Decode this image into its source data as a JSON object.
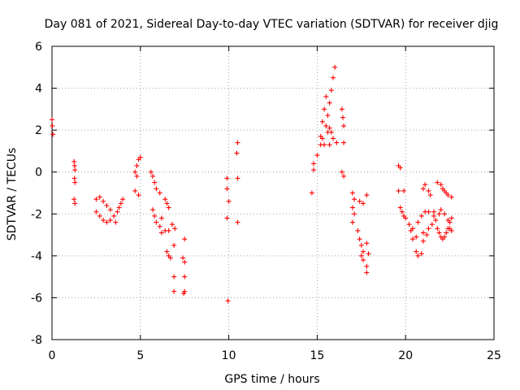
{
  "chart_data": {
    "type": "scatter",
    "title": "Day 081 of 2021, Sidereal Day-to-day VTEC variation (SDTVAR) for receiver djig",
    "xlabel": "GPS time / hours",
    "ylabel": "SDTVAR / TECUs",
    "xlim": [
      0,
      25
    ],
    "ylim": [
      -8,
      6
    ],
    "xticks": [
      0,
      5,
      10,
      15,
      20,
      25
    ],
    "xtick_labels": [
      "0",
      "5",
      "10",
      "15",
      "20",
      "25"
    ],
    "yticks": [
      -8,
      -6,
      -4,
      -2,
      0,
      2,
      4,
      6
    ],
    "ytick_labels": [
      "-8",
      "-6",
      "-4",
      "-2",
      "0",
      "2",
      "4",
      "6"
    ],
    "grid": true,
    "marker": "+",
    "color": "#ff0000",
    "series": [
      {
        "name": "SDTVAR",
        "points": [
          [
            0.0,
            2.5
          ],
          [
            0.02,
            2.2
          ],
          [
            0.05,
            1.8
          ],
          [
            1.25,
            0.5
          ],
          [
            1.28,
            0.3
          ],
          [
            1.3,
            0.1
          ],
          [
            1.27,
            -0.3
          ],
          [
            1.3,
            -0.5
          ],
          [
            1.25,
            -1.3
          ],
          [
            1.3,
            -1.5
          ],
          [
            2.5,
            -1.3
          ],
          [
            2.7,
            -1.2
          ],
          [
            2.9,
            -1.4
          ],
          [
            3.1,
            -1.6
          ],
          [
            3.3,
            -1.8
          ],
          [
            2.5,
            -1.9
          ],
          [
            2.7,
            -2.1
          ],
          [
            2.9,
            -2.3
          ],
          [
            3.1,
            -2.4
          ],
          [
            3.3,
            -2.3
          ],
          [
            3.5,
            -2.1
          ],
          [
            3.6,
            -2.4
          ],
          [
            3.7,
            -1.9
          ],
          [
            3.8,
            -1.7
          ],
          [
            3.9,
            -1.5
          ],
          [
            4.0,
            -1.3
          ],
          [
            4.7,
            0.0
          ],
          [
            4.8,
            0.3
          ],
          [
            4.9,
            0.6
          ],
          [
            5.0,
            0.7
          ],
          [
            4.8,
            -0.2
          ],
          [
            4.7,
            -0.9
          ],
          [
            4.9,
            -1.1
          ],
          [
            5.6,
            0.0
          ],
          [
            5.7,
            -0.2
          ],
          [
            5.8,
            -0.5
          ],
          [
            5.9,
            -0.8
          ],
          [
            6.1,
            -1.0
          ],
          [
            5.7,
            -1.8
          ],
          [
            5.8,
            -2.1
          ],
          [
            5.9,
            -2.4
          ],
          [
            6.1,
            -2.6
          ],
          [
            6.2,
            -2.9
          ],
          [
            6.4,
            -2.8
          ],
          [
            6.6,
            -2.8
          ],
          [
            6.4,
            -1.3
          ],
          [
            6.5,
            -1.5
          ],
          [
            6.6,
            -1.7
          ],
          [
            6.2,
            -2.2
          ],
          [
            6.5,
            -3.8
          ],
          [
            6.6,
            -4.0
          ],
          [
            6.7,
            -4.1
          ],
          [
            6.8,
            -2.5
          ],
          [
            6.9,
            -3.5
          ],
          [
            6.9,
            -5.0
          ],
          [
            6.9,
            -5.7
          ],
          [
            6.95,
            -2.7
          ],
          [
            7.5,
            -3.2
          ],
          [
            7.4,
            -4.1
          ],
          [
            7.5,
            -4.3
          ],
          [
            7.5,
            -5.0
          ],
          [
            7.5,
            -5.7
          ],
          [
            7.45,
            -5.8
          ],
          [
            9.9,
            -0.3
          ],
          [
            9.9,
            -0.8
          ],
          [
            10.0,
            -1.4
          ],
          [
            9.9,
            -2.2
          ],
          [
            9.95,
            -6.15
          ],
          [
            10.5,
            1.4
          ],
          [
            10.45,
            0.9
          ],
          [
            10.5,
            -0.3
          ],
          [
            10.5,
            -2.4
          ],
          [
            14.7,
            -1.0
          ],
          [
            14.8,
            0.1
          ],
          [
            14.8,
            0.4
          ],
          [
            15.0,
            0.8
          ],
          [
            15.2,
            1.3
          ],
          [
            15.3,
            1.6
          ],
          [
            15.5,
            2.2
          ],
          [
            15.6,
            2.7
          ],
          [
            15.7,
            3.3
          ],
          [
            15.8,
            3.9
          ],
          [
            15.9,
            4.5
          ],
          [
            16.0,
            5.0
          ],
          [
            15.3,
            2.4
          ],
          [
            15.4,
            3.0
          ],
          [
            15.5,
            3.6
          ],
          [
            15.6,
            1.9
          ],
          [
            15.7,
            2.1
          ],
          [
            15.8,
            1.9
          ],
          [
            15.9,
            1.6
          ],
          [
            15.7,
            1.3
          ],
          [
            15.4,
            1.3
          ],
          [
            15.2,
            1.7
          ],
          [
            16.1,
            1.4
          ],
          [
            16.4,
            3.0
          ],
          [
            16.45,
            2.6
          ],
          [
            16.5,
            2.2
          ],
          [
            16.5,
            1.4
          ],
          [
            16.4,
            0.0
          ],
          [
            16.5,
            -0.2
          ],
          [
            17.0,
            -1.0
          ],
          [
            17.1,
            -1.3
          ],
          [
            17.0,
            -1.7
          ],
          [
            17.1,
            -2.0
          ],
          [
            17.0,
            -2.4
          ],
          [
            17.3,
            -2.8
          ],
          [
            17.4,
            -3.2
          ],
          [
            17.5,
            -3.5
          ],
          [
            17.6,
            -3.8
          ],
          [
            17.5,
            -4.0
          ],
          [
            17.6,
            -4.2
          ],
          [
            17.4,
            -1.4
          ],
          [
            17.6,
            -1.5
          ],
          [
            17.8,
            -1.1
          ],
          [
            17.8,
            -3.4
          ],
          [
            17.9,
            -3.9
          ],
          [
            17.8,
            -4.5
          ],
          [
            17.8,
            -4.8
          ],
          [
            19.6,
            0.3
          ],
          [
            19.7,
            0.2
          ],
          [
            19.6,
            -0.9
          ],
          [
            19.9,
            -0.9
          ],
          [
            19.7,
            -1.7
          ],
          [
            19.8,
            -1.9
          ],
          [
            19.9,
            -2.1
          ],
          [
            20.0,
            -2.2
          ],
          [
            20.2,
            -2.5
          ],
          [
            20.3,
            -2.8
          ],
          [
            20.4,
            -3.2
          ],
          [
            20.6,
            -3.1
          ],
          [
            20.4,
            -2.7
          ],
          [
            20.7,
            -2.4
          ],
          [
            20.9,
            -2.1
          ],
          [
            21.1,
            -1.9
          ],
          [
            21.3,
            -1.9
          ],
          [
            20.6,
            -3.8
          ],
          [
            20.7,
            -4.0
          ],
          [
            20.9,
            -3.9
          ],
          [
            21.0,
            -3.3
          ],
          [
            21.2,
            -3.0
          ],
          [
            21.3,
            -2.7
          ],
          [
            21.0,
            -2.9
          ],
          [
            21.5,
            -2.5
          ],
          [
            21.6,
            -2.1
          ],
          [
            21.0,
            -0.8
          ],
          [
            21.1,
            -0.6
          ],
          [
            21.3,
            -0.9
          ],
          [
            21.4,
            -1.1
          ],
          [
            21.6,
            -1.9
          ],
          [
            21.7,
            -2.3
          ],
          [
            21.8,
            -2.7
          ],
          [
            21.9,
            -2.9
          ],
          [
            22.0,
            -3.1
          ],
          [
            22.1,
            -3.2
          ],
          [
            22.2,
            -3.1
          ],
          [
            22.3,
            -2.9
          ],
          [
            22.4,
            -2.7
          ],
          [
            22.5,
            -2.4
          ],
          [
            22.6,
            -2.2
          ],
          [
            21.9,
            -2.0
          ],
          [
            22.0,
            -1.8
          ],
          [
            22.2,
            -2.0
          ],
          [
            22.4,
            -2.3
          ],
          [
            22.5,
            -2.7
          ],
          [
            22.6,
            -2.8
          ],
          [
            21.8,
            -0.5
          ],
          [
            22.0,
            -0.6
          ],
          [
            22.1,
            -0.8
          ],
          [
            22.2,
            -0.9
          ],
          [
            22.3,
            -1.0
          ],
          [
            22.4,
            -1.1
          ],
          [
            22.6,
            -1.2
          ]
        ]
      }
    ]
  }
}
